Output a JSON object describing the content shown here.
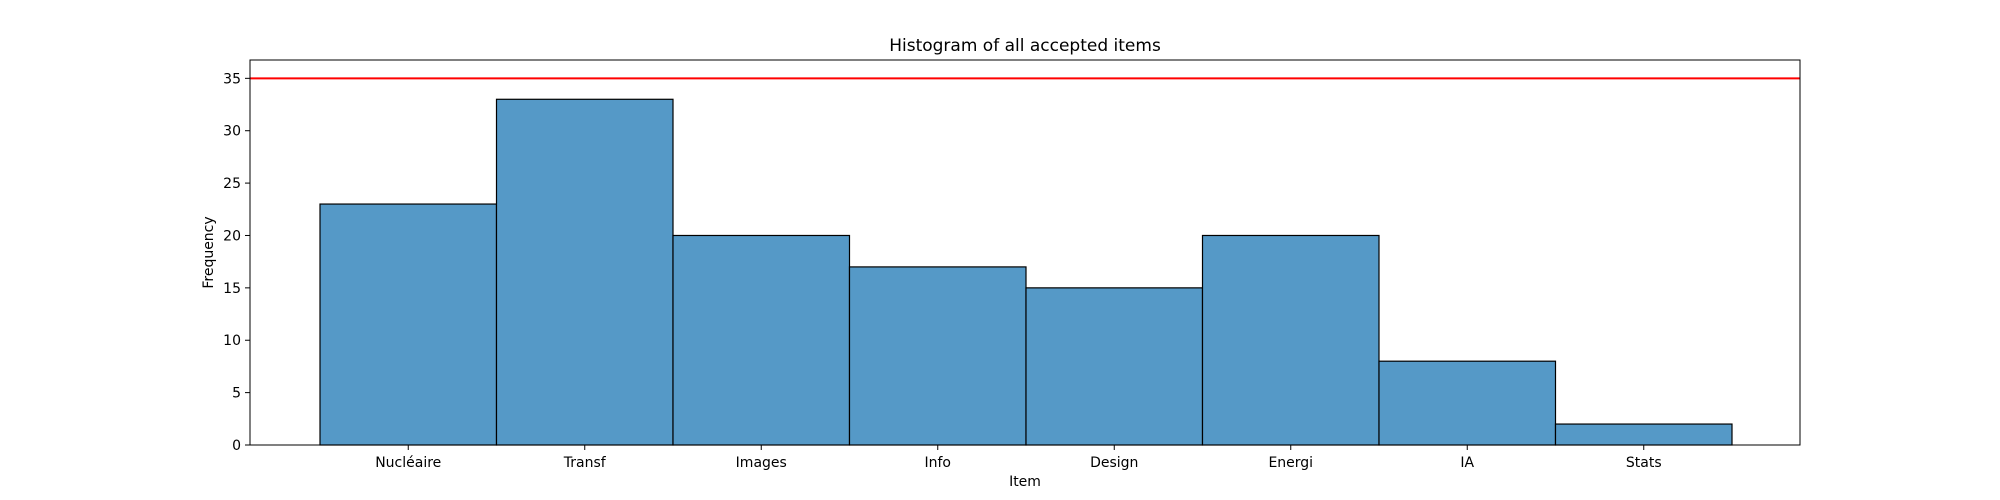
{
  "chart_data": {
    "type": "bar",
    "title": "Histogram of all accepted items",
    "xlabel": "Item",
    "ylabel": "Frequency",
    "categories": [
      "Nucléaire",
      "Transf",
      "Images",
      "Info",
      "Design",
      "Energi",
      "IA",
      "Stats"
    ],
    "values": [
      23,
      33,
      20,
      17,
      15,
      20,
      8,
      2
    ],
    "ylim": [
      0,
      36.75
    ],
    "yticks": [
      0,
      5,
      10,
      15,
      20,
      25,
      30,
      35
    ],
    "reference_line": {
      "value": 35,
      "color": "#ff0000"
    },
    "bar_color": "#5599c7",
    "bar_edge_color": "#000000",
    "grid": false
  }
}
